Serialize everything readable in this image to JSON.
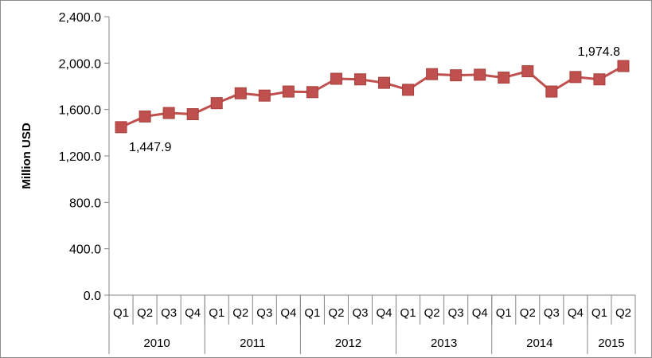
{
  "chart_data": {
    "type": "line",
    "title": "",
    "ylabel": "Million USD",
    "xlabel": "",
    "ylim": [
      0,
      2400
    ],
    "yticks": [
      0,
      400,
      800,
      1200,
      1600,
      2000,
      2400
    ],
    "ytick_labels": [
      "0.0",
      "400.0",
      "800.0",
      "1,200.0",
      "1,600.0",
      "2,000.0",
      "2,400.0"
    ],
    "grid": false,
    "legend": "none",
    "categories": [
      "Q1",
      "Q2",
      "Q3",
      "Q4",
      "Q1",
      "Q2",
      "Q3",
      "Q4",
      "Q1",
      "Q2",
      "Q3",
      "Q4",
      "Q1",
      "Q2",
      "Q3",
      "Q4",
      "Q1",
      "Q2",
      "Q3",
      "Q4",
      "Q1",
      "Q2"
    ],
    "groups": [
      {
        "label": "2010",
        "count": 4
      },
      {
        "label": "2011",
        "count": 4
      },
      {
        "label": "2012",
        "count": 4
      },
      {
        "label": "2013",
        "count": 4
      },
      {
        "label": "2014",
        "count": 4
      },
      {
        "label": "2015",
        "count": 2
      }
    ],
    "series": [
      {
        "values": [
          1447.9,
          1540,
          1570,
          1560,
          1655,
          1740,
          1720,
          1755,
          1750,
          1865,
          1860,
          1830,
          1770,
          1905,
          1895,
          1900,
          1875,
          1930,
          1755,
          1880,
          1860,
          1974.8
        ],
        "color": "#c0504d"
      }
    ],
    "annotations": [
      {
        "index": 0,
        "text": "1,447.9",
        "position": "below-right"
      },
      {
        "index": 21,
        "text": "1,974.8",
        "position": "above-left"
      }
    ]
  }
}
